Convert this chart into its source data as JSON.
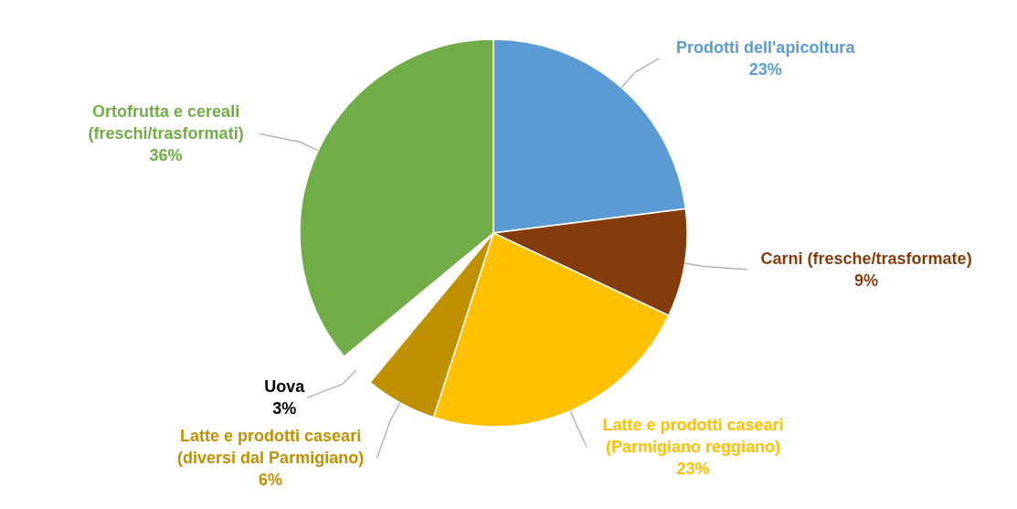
{
  "chart_data": {
    "type": "pie",
    "categories": [
      "Prodotti dell'apicoltura",
      "Carni (fresche/trasformate)",
      "Latte e prodotti caseari (Parmigiano reggiano)",
      "Latte e prodotti caseari (diversi dal Parmigiano)",
      "Uova",
      "Ortofrutta e cereali (freschi/trasformati)"
    ],
    "values": [
      23,
      9,
      23,
      6,
      3,
      36
    ],
    "value_labels": [
      "23%",
      "9%",
      "23%",
      "6%",
      "3%",
      "36%"
    ],
    "colors": [
      "#5b9bd5",
      "#843c0c",
      "#ffc000",
      "#bf9000",
      "#ffffff",
      "#70ad47"
    ]
  }
}
